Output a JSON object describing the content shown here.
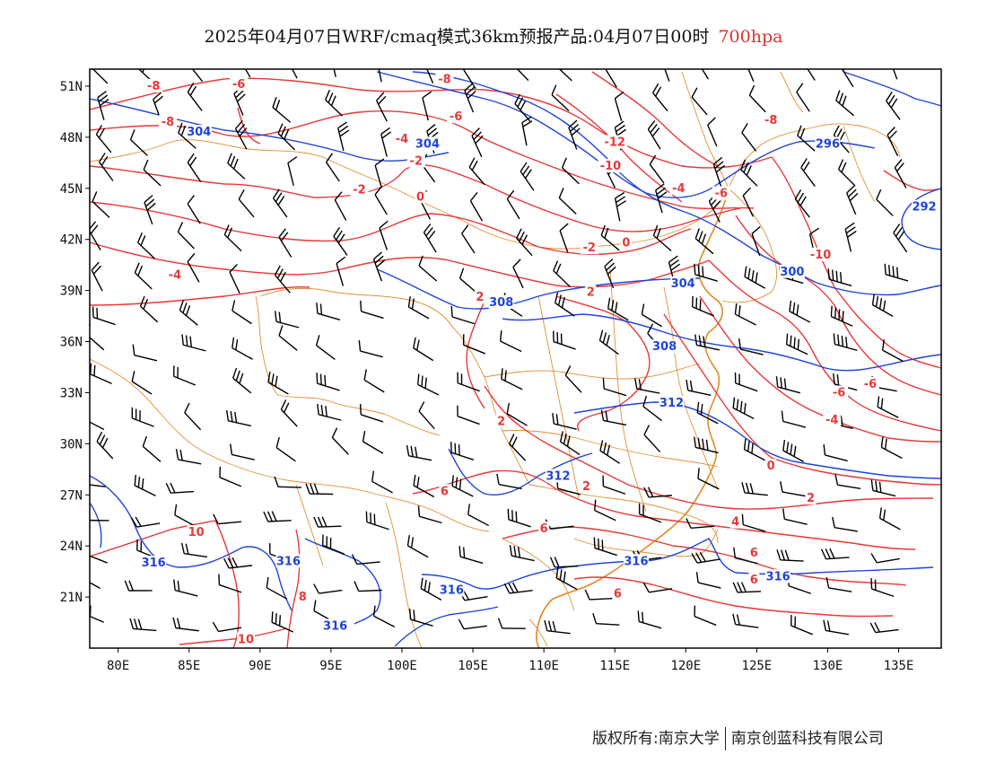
{
  "title": {
    "main": "2025年04月07日WRF/cmaq模式36km预报产品:04月07日00时",
    "level": "700hpa"
  },
  "footer": {
    "left": "版权所有:南京大学",
    "right": "南京创蓝科技有限公司"
  },
  "colors": {
    "temperature": "#e8383a",
    "geopotential": "#1f44d8",
    "boundary": "#e08a2a",
    "wind": "#000000",
    "frame": "#000000"
  },
  "chart_data": {
    "type": "map",
    "projection": "lat-lon",
    "xlim": [
      78,
      138
    ],
    "ylim": [
      18,
      52
    ],
    "x_ticks": [
      {
        "value": 80,
        "label": "80E"
      },
      {
        "value": 85,
        "label": "85E"
      },
      {
        "value": 90,
        "label": "90E"
      },
      {
        "value": 95,
        "label": "95E"
      },
      {
        "value": 100,
        "label": "100E"
      },
      {
        "value": 105,
        "label": "105E"
      },
      {
        "value": 110,
        "label": "110E"
      },
      {
        "value": 115,
        "label": "115E"
      },
      {
        "value": 120,
        "label": "120E"
      },
      {
        "value": 125,
        "label": "125E"
      },
      {
        "value": 130,
        "label": "130E"
      },
      {
        "value": 135,
        "label": "135E"
      }
    ],
    "y_ticks": [
      {
        "value": 51,
        "label": "51N"
      },
      {
        "value": 48,
        "label": "48N"
      },
      {
        "value": 45,
        "label": "45N"
      },
      {
        "value": 42,
        "label": "42N"
      },
      {
        "value": 39,
        "label": "39N"
      },
      {
        "value": 36,
        "label": "36N"
      },
      {
        "value": 33,
        "label": "33N"
      },
      {
        "value": 30,
        "label": "30N"
      },
      {
        "value": 27,
        "label": "27N"
      },
      {
        "value": 24,
        "label": "24N"
      },
      {
        "value": 21,
        "label": "21N"
      }
    ],
    "temperature_labels": [
      {
        "lon": 82.5,
        "lat": 51.0,
        "text": "-8"
      },
      {
        "lon": 83.5,
        "lat": 48.9,
        "text": "-8"
      },
      {
        "lon": 88.5,
        "lat": 51.1,
        "text": "-6"
      },
      {
        "lon": 97.0,
        "lat": 44.9,
        "text": "-2"
      },
      {
        "lon": 84.0,
        "lat": 39.9,
        "text": "-4"
      },
      {
        "lon": 103.0,
        "lat": 51.4,
        "text": "-8"
      },
      {
        "lon": 103.8,
        "lat": 49.2,
        "text": "-6"
      },
      {
        "lon": 100.0,
        "lat": 47.9,
        "text": "-4"
      },
      {
        "lon": 101.0,
        "lat": 46.6,
        "text": "-2"
      },
      {
        "lon": 101.3,
        "lat": 44.5,
        "text": "0"
      },
      {
        "lon": 115.0,
        "lat": 47.7,
        "text": "-12"
      },
      {
        "lon": 114.7,
        "lat": 46.3,
        "text": "-10"
      },
      {
        "lon": 126.0,
        "lat": 49.0,
        "text": "-8"
      },
      {
        "lon": 122.5,
        "lat": 44.7,
        "text": "-6"
      },
      {
        "lon": 119.5,
        "lat": 45.0,
        "text": "-4"
      },
      {
        "lon": 113.2,
        "lat": 41.5,
        "text": "-2"
      },
      {
        "lon": 115.8,
        "lat": 41.8,
        "text": "0"
      },
      {
        "lon": 113.3,
        "lat": 38.9,
        "text": "2"
      },
      {
        "lon": 105.5,
        "lat": 38.6,
        "text": "2"
      },
      {
        "lon": 129.5,
        "lat": 41.1,
        "text": "-10"
      },
      {
        "lon": 133.0,
        "lat": 33.5,
        "text": "-6"
      },
      {
        "lon": 130.8,
        "lat": 33.0,
        "text": "-6"
      },
      {
        "lon": 130.3,
        "lat": 31.4,
        "text": "-4"
      },
      {
        "lon": 107.0,
        "lat": 31.3,
        "text": "2"
      },
      {
        "lon": 103.0,
        "lat": 27.2,
        "text": "6"
      },
      {
        "lon": 113.0,
        "lat": 27.5,
        "text": "2"
      },
      {
        "lon": 123.5,
        "lat": 25.4,
        "text": "4"
      },
      {
        "lon": 126.0,
        "lat": 28.7,
        "text": "0"
      },
      {
        "lon": 128.8,
        "lat": 26.8,
        "text": "2"
      },
      {
        "lon": 110.0,
        "lat": 25.0,
        "text": "6"
      },
      {
        "lon": 124.8,
        "lat": 23.6,
        "text": "6"
      },
      {
        "lon": 124.8,
        "lat": 22.0,
        "text": "6"
      },
      {
        "lon": 115.2,
        "lat": 21.2,
        "text": "6"
      },
      {
        "lon": 85.5,
        "lat": 24.8,
        "text": "10"
      },
      {
        "lon": 93.0,
        "lat": 21.0,
        "text": "8"
      },
      {
        "lon": 89.0,
        "lat": 18.5,
        "text": "10"
      }
    ],
    "height_labels": [
      {
        "lon": 85.7,
        "lat": 48.3,
        "text": "304"
      },
      {
        "lon": 101.8,
        "lat": 47.6,
        "text": "304"
      },
      {
        "lon": 130.0,
        "lat": 47.6,
        "text": "296"
      },
      {
        "lon": 136.8,
        "lat": 43.9,
        "text": "292"
      },
      {
        "lon": 127.5,
        "lat": 40.1,
        "text": "300"
      },
      {
        "lon": 119.8,
        "lat": 39.4,
        "text": "304"
      },
      {
        "lon": 107.0,
        "lat": 38.3,
        "text": "308"
      },
      {
        "lon": 118.5,
        "lat": 35.7,
        "text": "308"
      },
      {
        "lon": 119.0,
        "lat": 32.4,
        "text": "312"
      },
      {
        "lon": 111.0,
        "lat": 28.1,
        "text": "312"
      },
      {
        "lon": 82.5,
        "lat": 23.0,
        "text": "316"
      },
      {
        "lon": 92.0,
        "lat": 23.1,
        "text": "316"
      },
      {
        "lon": 95.3,
        "lat": 19.3,
        "text": "316"
      },
      {
        "lon": 103.5,
        "lat": 21.4,
        "text": "316"
      },
      {
        "lon": 116.5,
        "lat": 23.1,
        "text": "316"
      },
      {
        "lon": 126.5,
        "lat": 22.2,
        "text": "316"
      }
    ]
  }
}
